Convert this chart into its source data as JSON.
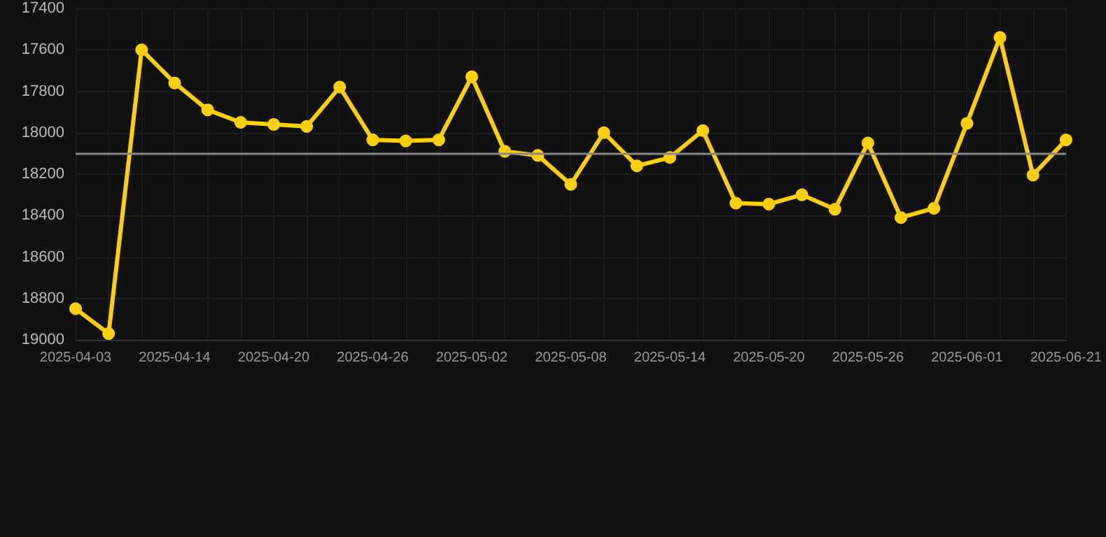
{
  "chart_data": {
    "type": "line",
    "categories": [
      "2025-04-03",
      null,
      null,
      "2025-04-14",
      null,
      null,
      "2025-04-20",
      null,
      null,
      "2025-04-26",
      null,
      null,
      "2025-05-02",
      null,
      null,
      "2025-05-08",
      null,
      null,
      "2025-05-14",
      null,
      null,
      "2025-05-20",
      null,
      null,
      "2025-05-26",
      null,
      null,
      "2025-06-01",
      null,
      null,
      "2025-06-21"
    ],
    "series": [
      {
        "color": "#ffd000",
        "values": [
          18850,
          18970,
          17600,
          17760,
          17890,
          17950,
          17960,
          17970,
          17780,
          18035,
          18040,
          18035,
          17730,
          18090,
          18110,
          18250,
          18000,
          18160,
          18120,
          17990,
          18340,
          18345,
          18300,
          18370,
          18050,
          18410,
          18365,
          17955,
          17540,
          18205,
          18035
        ]
      }
    ],
    "ylim": [
      19000,
      17400
    ],
    "yticks": [
      17400,
      17600,
      17800,
      18000,
      18200,
      18400,
      18600,
      18800,
      19000
    ],
    "ref_lines": [
      {
        "axis": "y",
        "value": 18100,
        "color": "#888888"
      }
    ],
    "grid": true,
    "marker": "circle",
    "line_style": "solid"
  }
}
